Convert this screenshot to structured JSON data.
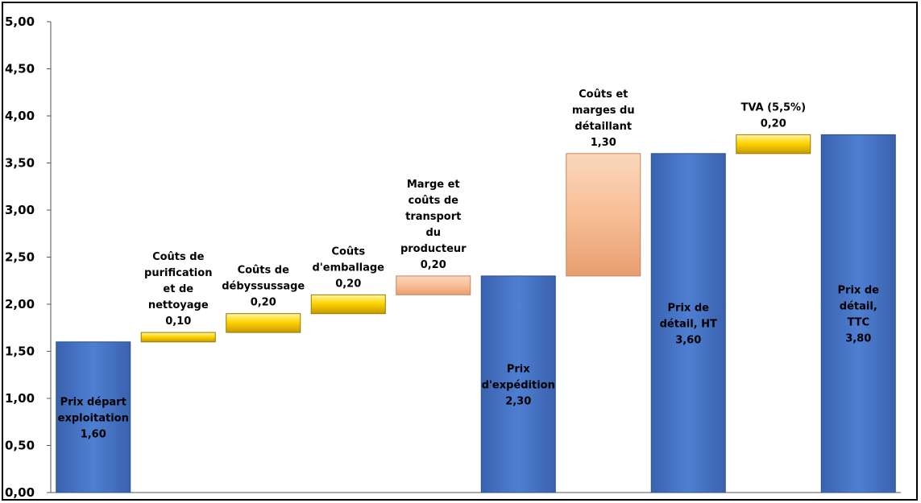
{
  "chart_data": {
    "type": "bar",
    "subtype": "waterfall",
    "title": "",
    "xlabel": "",
    "ylabel": "",
    "ylim": [
      0,
      5
    ],
    "yticks": [
      "0,00",
      "0,50",
      "1,00",
      "1,50",
      "2,00",
      "2,50",
      "3,00",
      "3,50",
      "4,00",
      "4,50",
      "5,00"
    ],
    "grid": false,
    "colors": {
      "total": "#4472C4",
      "increment_yellow": "#F2C200",
      "increment_peach": "#F8BE96"
    },
    "categories": [
      {
        "label": [
          "Prix départ",
          "exploitation"
        ],
        "value_text": "1,60",
        "base": 0,
        "value": 1.6,
        "kind": "total",
        "color": "blue",
        "label_pos": "inside"
      },
      {
        "label": [
          "Coûts de",
          "purification",
          "et de",
          "nettoyage"
        ],
        "value_text": "0,10",
        "base": 1.6,
        "value": 0.1,
        "kind": "increment",
        "color": "yellow",
        "label_pos": "above"
      },
      {
        "label": [
          "Coûts de",
          "débyssussage"
        ],
        "value_text": "0,20",
        "base": 1.7,
        "value": 0.2,
        "kind": "increment",
        "color": "yellow",
        "label_pos": "above"
      },
      {
        "label": [
          "Coûts",
          "d'emballage"
        ],
        "value_text": "0,20",
        "base": 1.9,
        "value": 0.2,
        "kind": "increment",
        "color": "yellow",
        "label_pos": "above"
      },
      {
        "label": [
          "Marge et",
          "coûts de",
          "transport",
          "du",
          "producteur"
        ],
        "value_text": "0,20",
        "base": 2.1,
        "value": 0.2,
        "kind": "increment",
        "color": "peach",
        "label_pos": "above"
      },
      {
        "label": [
          "Prix",
          "d'expédition"
        ],
        "value_text": "2,30",
        "base": 0,
        "value": 2.3,
        "kind": "total",
        "color": "blue",
        "label_pos": "inside"
      },
      {
        "label": [
          "Coûts et",
          "marges du",
          "détaillant"
        ],
        "value_text": "1,30",
        "base": 2.3,
        "value": 1.3,
        "kind": "increment",
        "color": "peach",
        "label_pos": "above"
      },
      {
        "label": [
          "Prix de",
          "détail, HT"
        ],
        "value_text": "3,60",
        "base": 0,
        "value": 3.6,
        "kind": "total",
        "color": "blue",
        "label_pos": "inside"
      },
      {
        "label": [
          "TVA (5,5%)"
        ],
        "value_text": "0,20",
        "base": 3.6,
        "value": 0.2,
        "kind": "increment",
        "color": "yellow",
        "label_pos": "above"
      },
      {
        "label": [
          "Prix de",
          "détail,",
          "TTC"
        ],
        "value_text": "3,80",
        "base": 0,
        "value": 3.8,
        "kind": "total",
        "color": "blue",
        "label_pos": "inside"
      }
    ]
  }
}
